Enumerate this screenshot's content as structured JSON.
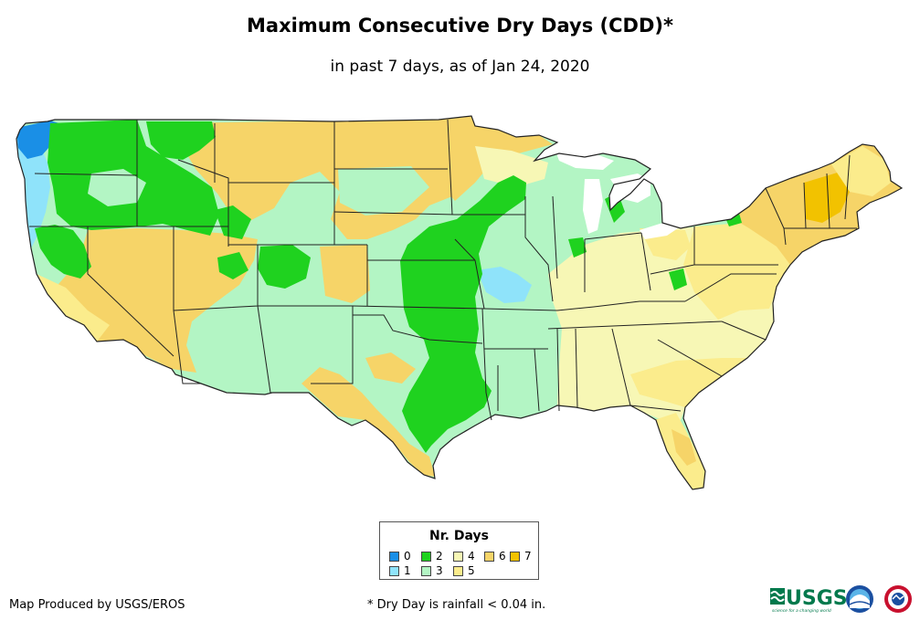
{
  "title": "Maximum Consecutive Dry Days (CDD)*",
  "subtitle": "in past 7 days, as of Jan 24, 2020",
  "legend": {
    "title": "Nr. Days",
    "items": [
      {
        "label": "0",
        "color": "#1a8fe6"
      },
      {
        "label": "1",
        "color": "#8fe3fa"
      },
      {
        "label": "2",
        "color": "#1fd21f"
      },
      {
        "label": "3",
        "color": "#b3f5c4"
      },
      {
        "label": "4",
        "color": "#f7f7b5"
      },
      {
        "label": "5",
        "color": "#fbec8c"
      },
      {
        "label": "6",
        "color": "#f6d468"
      },
      {
        "label": "7",
        "color": "#f2c200"
      }
    ]
  },
  "credit": "Map Produced by USGS/EROS",
  "footnote": "* Dry Day is rainfall < 0.04 in.",
  "logos": {
    "usgs": "USGS",
    "usgs_tagline": "science for a changing world"
  }
}
